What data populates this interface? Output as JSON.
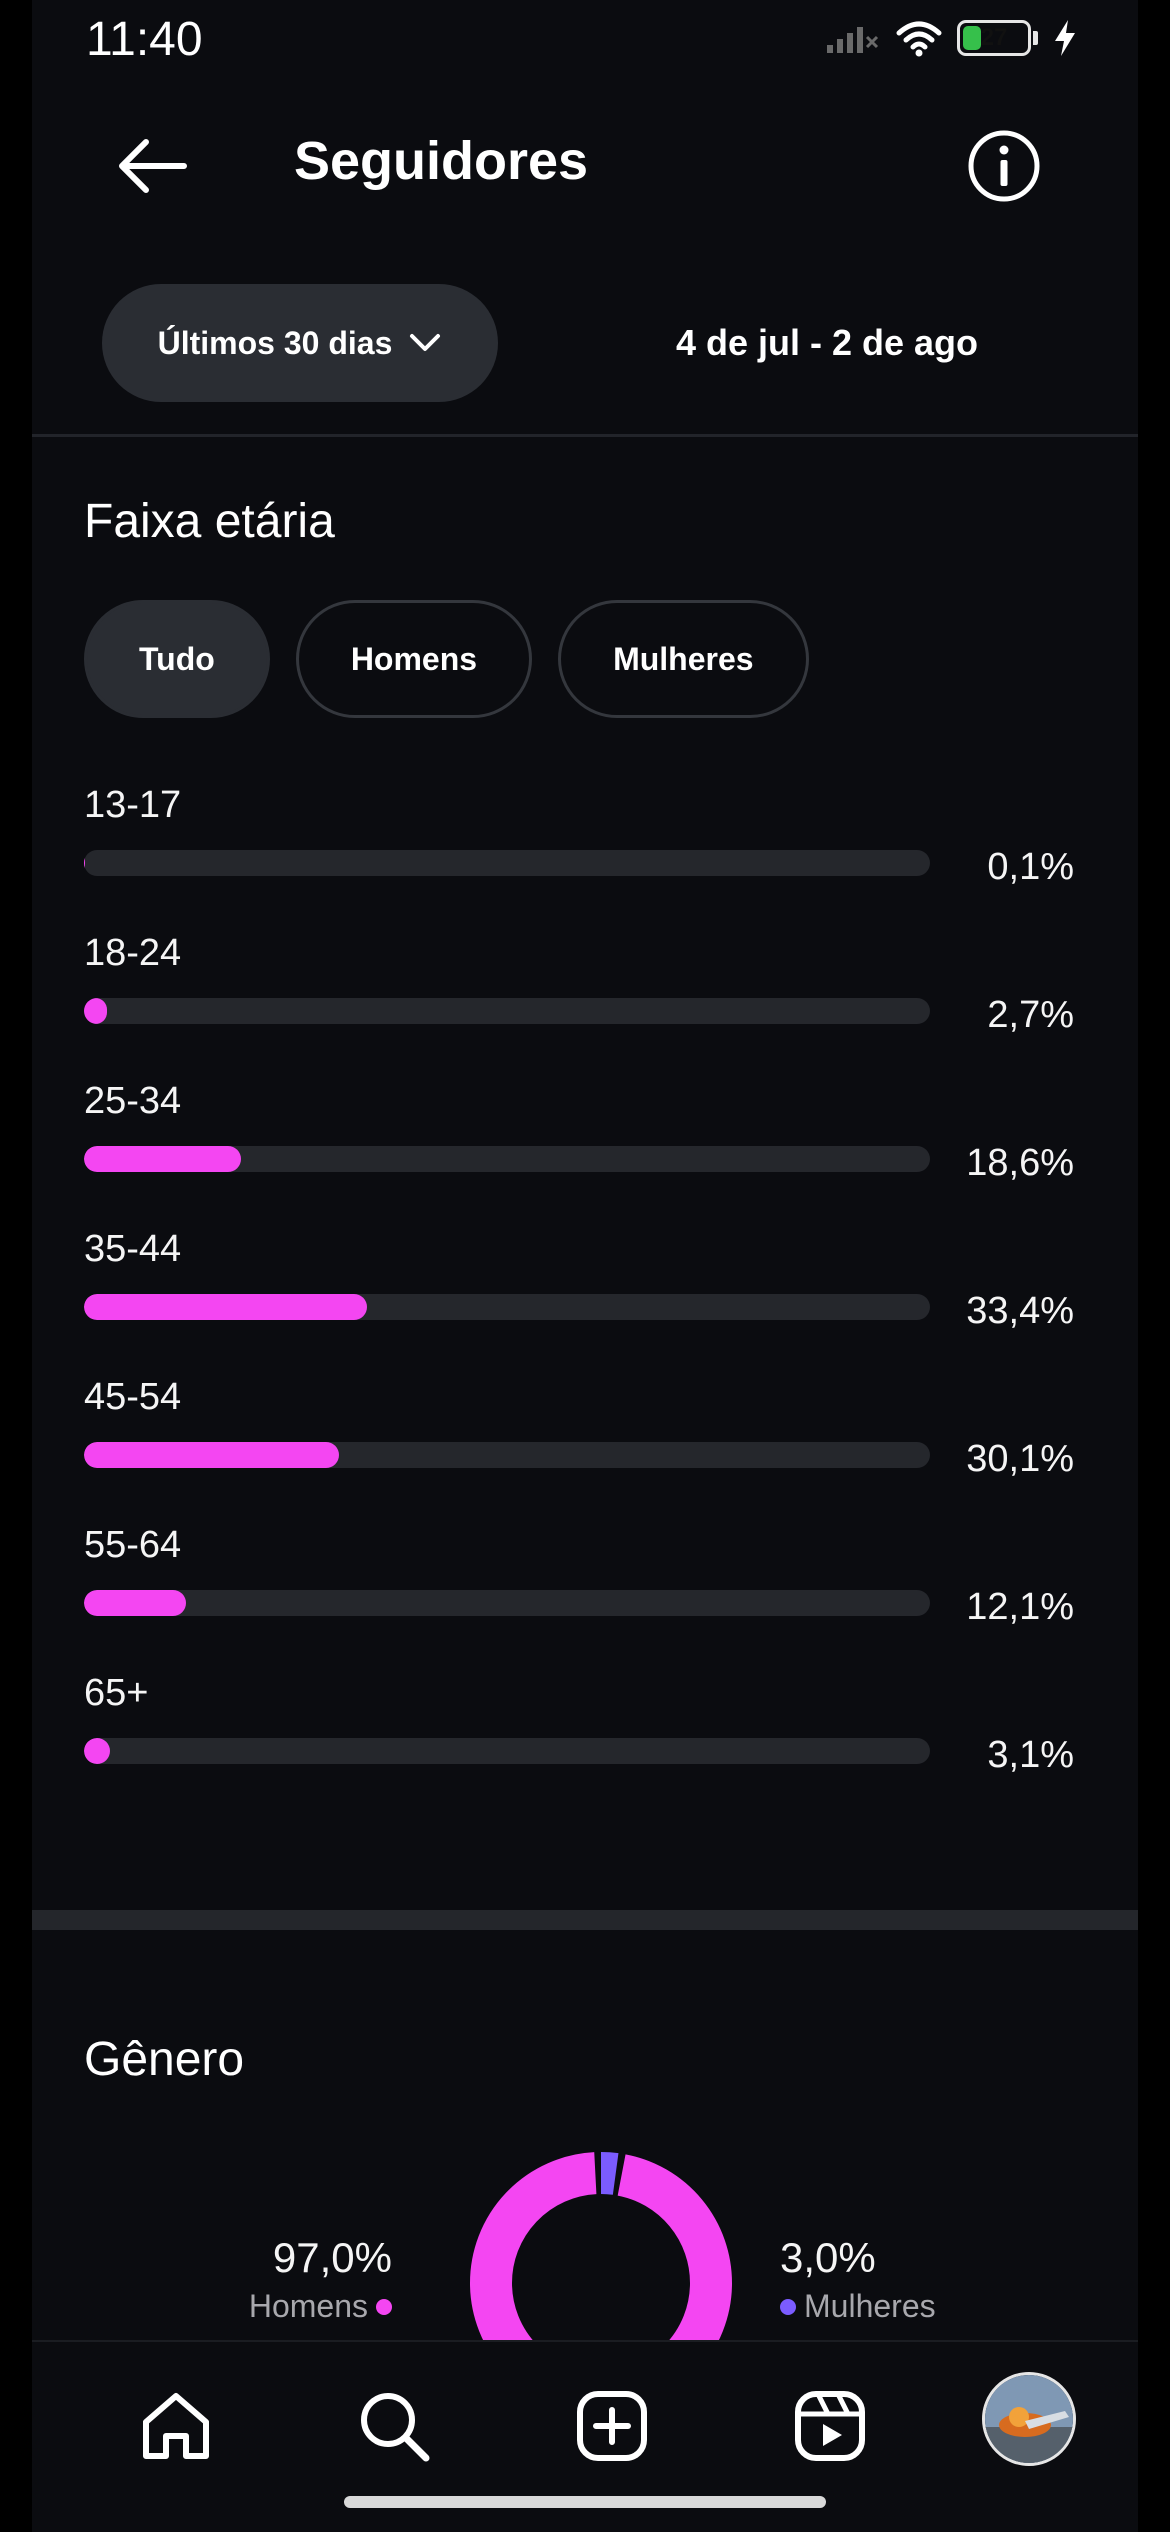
{
  "status_bar": {
    "time": "11:40",
    "battery": "27",
    "battery_fraction": 0.27
  },
  "header": {
    "title": "Seguidores"
  },
  "range": {
    "label": "Últimos 30 dias",
    "dates": "4 de jul - 2 de ago"
  },
  "age": {
    "title": "Faixa etária",
    "filters": [
      "Tudo",
      "Homens",
      "Mulheres"
    ],
    "active_filter": "Tudo",
    "bar_color": "#f446f2",
    "rows": [
      {
        "label": "13-17",
        "value": "0,1%",
        "pct": 0.1
      },
      {
        "label": "18-24",
        "value": "2,7%",
        "pct": 2.7
      },
      {
        "label": "25-34",
        "value": "18,6%",
        "pct": 18.6
      },
      {
        "label": "35-44",
        "value": "33,4%",
        "pct": 33.4
      },
      {
        "label": "45-54",
        "value": "30,1%",
        "pct": 30.1
      },
      {
        "label": "55-64",
        "value": "12,1%",
        "pct": 12.1
      },
      {
        "label": "65+",
        "value": "3,1%",
        "pct": 3.1
      }
    ]
  },
  "gender": {
    "title": "Gênero",
    "men": {
      "label": "Homens",
      "value": "97,0%",
      "pct": 97.0,
      "color": "#f446f2"
    },
    "women": {
      "label": "Mulheres",
      "value": "3,0%",
      "pct": 3.0,
      "color": "#7b5cff"
    }
  },
  "nav": {
    "items": [
      {
        "name": "home-icon"
      },
      {
        "name": "search-icon"
      },
      {
        "name": "create-icon"
      },
      {
        "name": "reels-icon"
      },
      {
        "name": "profile-avatar"
      }
    ]
  }
}
